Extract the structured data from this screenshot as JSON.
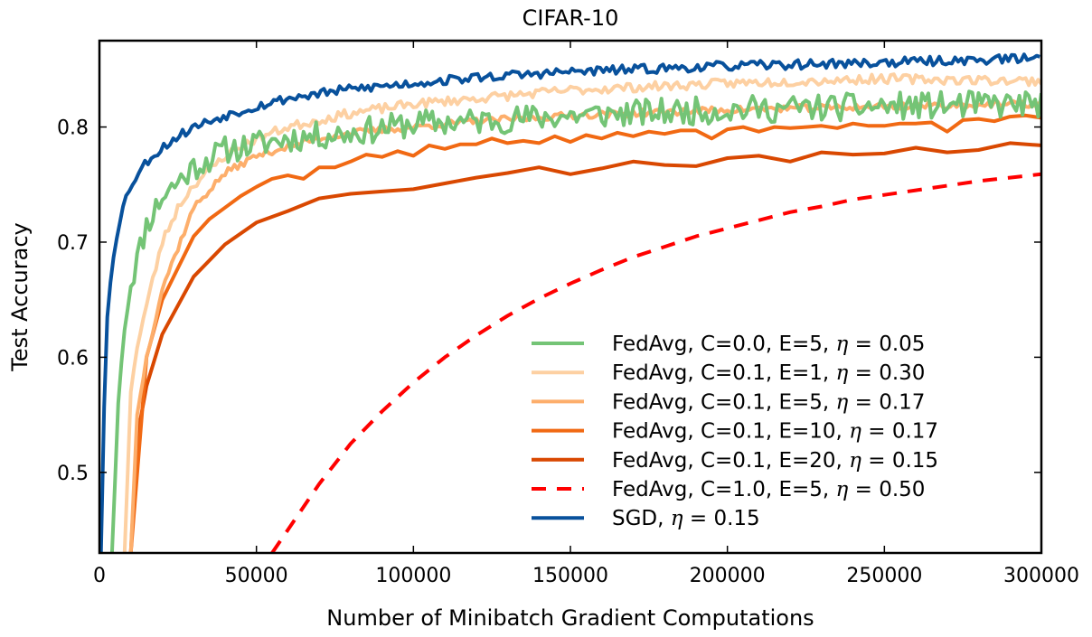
{
  "chart_data": {
    "type": "line",
    "title": "CIFAR-10",
    "xlabel": "Number of Minibatch Gradient Computations",
    "ylabel": "Test Accuracy",
    "xlim": [
      0,
      300000
    ],
    "ylim": [
      0.43,
      0.875
    ],
    "xticks": [
      0,
      50000,
      100000,
      150000,
      200000,
      250000,
      300000
    ],
    "xtick_labels": [
      "0",
      "50000",
      "100000",
      "150000",
      "200000",
      "250000",
      "300000"
    ],
    "yticks": [
      0.5,
      0.6,
      0.7,
      0.8
    ],
    "ytick_labels": [
      "0.5",
      "0.6",
      "0.7",
      "0.8"
    ],
    "grid": false,
    "legend_position": "lower-right",
    "series": [
      {
        "name": "FedAvg, C=0.0, E=5, η = 0.05",
        "label_prefix": "FedAvg, C=0.0, E=5, ",
        "label_symbol": "η",
        "label_suffix": " =  0.05",
        "color": "#74c476",
        "dash": "solid",
        "noise": 0.012,
        "seed": 11,
        "step": 1000,
        "x": [
          4000,
          6000,
          8000,
          10000,
          15000,
          20000,
          30000,
          40000,
          50000,
          60000,
          80000,
          100000,
          120000,
          150000,
          200000,
          250000,
          300000
        ],
        "y": [
          0.43,
          0.56,
          0.63,
          0.665,
          0.715,
          0.74,
          0.765,
          0.78,
          0.785,
          0.79,
          0.795,
          0.803,
          0.805,
          0.81,
          0.815,
          0.818,
          0.82
        ]
      },
      {
        "name": "FedAvg, C=0.1, E=1, η = 0.30",
        "label_prefix": "FedAvg, C=0.1, E=1, ",
        "label_symbol": "η",
        "label_suffix": " =  0.30",
        "color": "#fdd0a2",
        "dash": "solid",
        "noise": 0.004,
        "seed": 23,
        "step": 1000,
        "x": [
          8000,
          10000,
          12000,
          15000,
          20000,
          25000,
          30000,
          40000,
          50000,
          60000,
          80000,
          100000,
          150000,
          200000,
          250000,
          300000
        ],
        "y": [
          0.43,
          0.57,
          0.61,
          0.645,
          0.7,
          0.73,
          0.75,
          0.775,
          0.79,
          0.8,
          0.812,
          0.82,
          0.832,
          0.838,
          0.842,
          0.84
        ]
      },
      {
        "name": "FedAvg, C=0.1, E=5, η = 0.17",
        "label_prefix": "FedAvg, C=0.1, E=5, ",
        "label_symbol": "η",
        "label_suffix": " =  0.17",
        "color": "#fdae6b",
        "dash": "solid",
        "noise": 0.003,
        "seed": 37,
        "step": 1000,
        "x": [
          10000,
          12000,
          15000,
          20000,
          30000,
          40000,
          50000,
          60000,
          70000,
          80000,
          100000,
          120000,
          150000,
          200000,
          250000,
          300000
        ],
        "y": [
          0.43,
          0.55,
          0.6,
          0.66,
          0.73,
          0.76,
          0.775,
          0.783,
          0.79,
          0.795,
          0.8,
          0.805,
          0.81,
          0.815,
          0.818,
          0.82
        ]
      },
      {
        "name": "FedAvg, C=0.1, E=10, η = 0.17",
        "label_prefix": "FedAvg, C=0.1, E=10, ",
        "label_symbol": "η",
        "label_suffix": " =  0.17",
        "color": "#f16913",
        "dash": "solid",
        "noise": 0.0,
        "seed": 0,
        "step": 0,
        "x": [
          10000,
          15000,
          20000,
          30000,
          35000,
          40000,
          45000,
          50000,
          55000,
          60000,
          65000,
          70000,
          75000,
          80000,
          85000,
          90000,
          95000,
          100000,
          105000,
          110000,
          115000,
          120000,
          125000,
          130000,
          135000,
          140000,
          145000,
          150000,
          155000,
          160000,
          165000,
          170000,
          175000,
          180000,
          185000,
          190000,
          195000,
          200000,
          205000,
          210000,
          215000,
          220000,
          225000,
          230000,
          235000,
          240000,
          245000,
          250000,
          255000,
          260000,
          265000,
          270000,
          275000,
          280000,
          285000,
          290000,
          295000,
          300000
        ],
        "y": [
          0.43,
          0.6,
          0.65,
          0.705,
          0.72,
          0.73,
          0.74,
          0.748,
          0.755,
          0.758,
          0.755,
          0.765,
          0.765,
          0.77,
          0.776,
          0.774,
          0.779,
          0.775,
          0.784,
          0.781,
          0.785,
          0.785,
          0.79,
          0.786,
          0.788,
          0.786,
          0.792,
          0.787,
          0.793,
          0.79,
          0.795,
          0.792,
          0.796,
          0.794,
          0.797,
          0.797,
          0.79,
          0.798,
          0.8,
          0.796,
          0.8,
          0.799,
          0.8,
          0.801,
          0.799,
          0.803,
          0.801,
          0.801,
          0.803,
          0.803,
          0.804,
          0.796,
          0.806,
          0.807,
          0.805,
          0.809,
          0.81,
          0.808
        ]
      },
      {
        "name": "FedAvg, C=0.1, E=20, η = 0.15",
        "label_prefix": "FedAvg, C=0.1, E=20, ",
        "label_symbol": "η",
        "label_suffix": " =  0.15",
        "color": "#d94801",
        "dash": "solid",
        "noise": 0.0,
        "seed": 0,
        "step": 0,
        "x": [
          10000,
          12000,
          15000,
          20000,
          30000,
          40000,
          50000,
          60000,
          70000,
          80000,
          90000,
          100000,
          110000,
          120000,
          130000,
          140000,
          150000,
          160000,
          170000,
          180000,
          190000,
          200000,
          210000,
          220000,
          230000,
          240000,
          250000,
          260000,
          270000,
          280000,
          290000,
          300000
        ],
        "y": [
          0.43,
          0.53,
          0.575,
          0.62,
          0.67,
          0.698,
          0.717,
          0.727,
          0.738,
          0.742,
          0.744,
          0.746,
          0.751,
          0.756,
          0.76,
          0.765,
          0.759,
          0.764,
          0.77,
          0.767,
          0.766,
          0.773,
          0.775,
          0.77,
          0.778,
          0.776,
          0.777,
          0.782,
          0.778,
          0.78,
          0.786,
          0.784
        ]
      },
      {
        "name": "FedAvg, C=1.0, E=5, η = 0.50",
        "label_prefix": "FedAvg, C=1.0, E=5, ",
        "label_symbol": "η",
        "label_suffix": " =  0.50",
        "color": "#ff0000",
        "dash": "dashed",
        "noise": 0.0,
        "seed": 0,
        "step": 0,
        "x": [
          55000,
          60000,
          70000,
          80000,
          90000,
          100000,
          110000,
          120000,
          130000,
          140000,
          150000,
          160000,
          170000,
          180000,
          190000,
          200000,
          210000,
          220000,
          230000,
          240000,
          250000,
          260000,
          270000,
          280000,
          290000,
          300000
        ],
        "y": [
          0.43,
          0.45,
          0.49,
          0.525,
          0.553,
          0.578,
          0.6,
          0.619,
          0.636,
          0.651,
          0.664,
          0.676,
          0.687,
          0.696,
          0.705,
          0.712,
          0.719,
          0.726,
          0.731,
          0.737,
          0.741,
          0.745,
          0.749,
          0.753,
          0.756,
          0.759
        ]
      },
      {
        "name": "SGD, η = 0.15",
        "label_prefix": "SGD, ",
        "label_symbol": "η",
        "label_suffix": " =  0.15",
        "color": "#08519c",
        "dash": "solid",
        "noise": 0.004,
        "seed": 53,
        "step": 1000,
        "x": [
          500,
          2000,
          4000,
          6000,
          8000,
          10000,
          15000,
          20000,
          25000,
          30000,
          40000,
          50000,
          60000,
          80000,
          100000,
          120000,
          150000,
          200000,
          250000,
          300000
        ],
        "y": [
          0.43,
          0.62,
          0.68,
          0.715,
          0.735,
          0.75,
          0.77,
          0.782,
          0.792,
          0.8,
          0.81,
          0.818,
          0.825,
          0.833,
          0.838,
          0.843,
          0.848,
          0.853,
          0.856,
          0.86
        ]
      }
    ]
  }
}
